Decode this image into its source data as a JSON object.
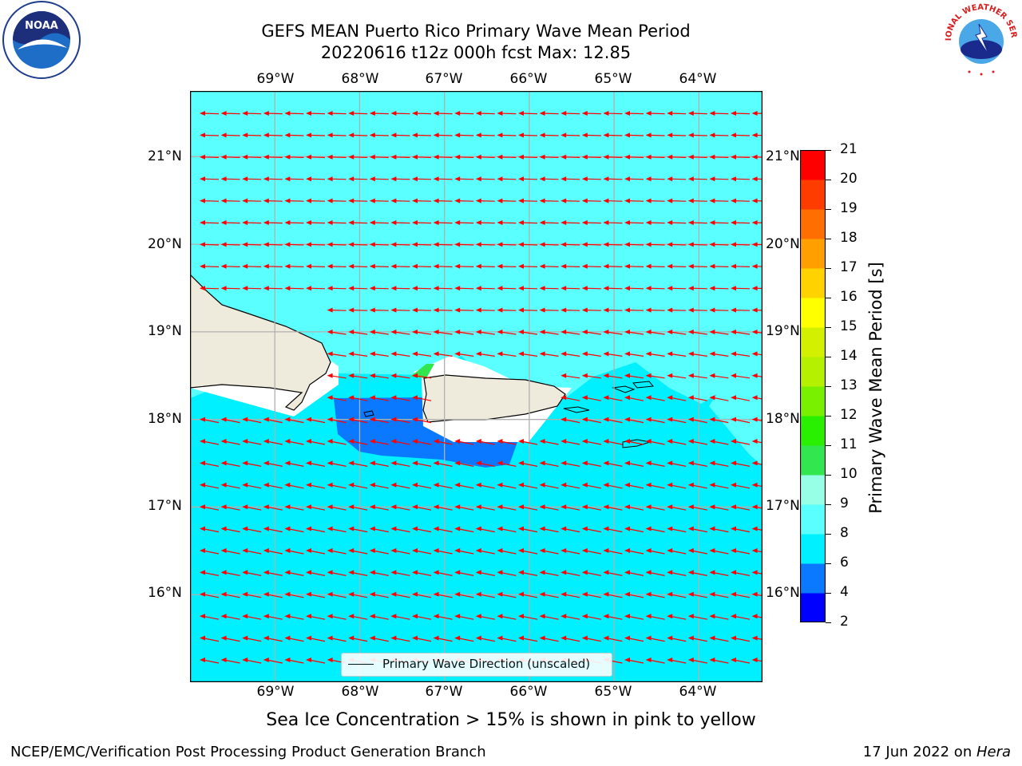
{
  "title_line1": "GEFS MEAN Puerto Rico Primary Wave Mean Period",
  "title_line2": "20220616 t12z 000h fcst   Max: 12.85",
  "logos": {
    "left": "NOAA",
    "right": "NATIONAL WEATHER SERVICE"
  },
  "map": {
    "lon_labels": [
      "69°W",
      "68°W",
      "67°W",
      "66°W",
      "65°W",
      "64°W"
    ],
    "lat_labels": [
      "21°N",
      "20°N",
      "19°N",
      "18°N",
      "17°N",
      "16°N"
    ],
    "lon_range": [
      -70.0,
      -63.25
    ],
    "lat_range": [
      15.0,
      21.75
    ],
    "arrow_color": "#ff0000",
    "land_color": "#efebdc",
    "legend_label": "Primary Wave Direction (unscaled)"
  },
  "colorbar": {
    "title": "Primary Wave Mean Period [s]",
    "ticks": [
      "21",
      "20",
      "19",
      "18",
      "17",
      "16",
      "15",
      "14",
      "13",
      "12",
      "11",
      "10",
      "9",
      "8",
      "6",
      "4",
      "2"
    ],
    "levels": [
      2,
      4,
      6,
      8,
      9,
      10,
      11,
      12,
      13,
      14,
      15,
      16,
      17,
      18,
      19,
      20,
      21
    ],
    "colors": [
      "#0000ff",
      "#0a78ff",
      "#00f0ff",
      "#5affff",
      "#96ffe6",
      "#32e650",
      "#28f000",
      "#78f000",
      "#b4f000",
      "#d2f000",
      "#ffff00",
      "#ffd200",
      "#ffa000",
      "#ff6e00",
      "#ff3c00",
      "#ff0000"
    ]
  },
  "chart_data": {
    "type": "heatmap",
    "title": "GEFS MEAN Puerto Rico Primary Wave Mean Period",
    "subtitle": "20220616 t12z 000h fcst   Max: 12.85",
    "max_value": 12.85,
    "units": "s",
    "field_estimates": [
      {
        "region": "north of 18.3°N (open Atlantic)",
        "value_range": [
          8,
          9
        ]
      },
      {
        "region": "south of 18.2°N (Caribbean)",
        "value_range": [
          6,
          8
        ]
      },
      {
        "region": "Mona Passage / southwest of Puerto Rico",
        "value_range": [
          4,
          6
        ]
      },
      {
        "region": "northwest tip of Puerto Rico",
        "value_range": [
          10,
          12.85
        ]
      }
    ]
  },
  "note": "Sea Ice Concentration > 15% is shown in pink to yellow",
  "footer_left": "NCEP/EMC/Verification Post Processing Product Generation Branch",
  "footer_right_prefix": "17 Jun 2022 on ",
  "footer_right_system": "Hera"
}
